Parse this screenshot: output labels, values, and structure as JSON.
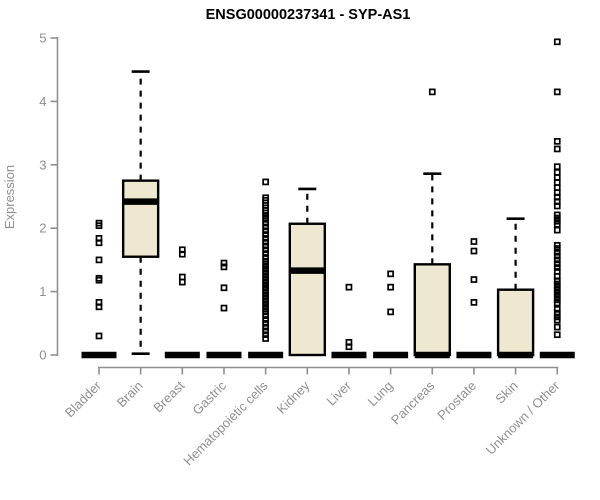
{
  "title": "ENSG00000237341 - SYP-AS1",
  "ylabel": "Expression",
  "colors": {
    "box_fill": "#ede8cf",
    "box_stroke": "#000000",
    "outlier_stroke": "#000000",
    "axis_color": "#8f8f8f",
    "title_color": "#000000",
    "background": "#ffffff"
  },
  "chart_data": {
    "type": "boxplot",
    "title": "ENSG00000237341 - SYP-AS1",
    "xlabel": "",
    "ylabel": "Expression",
    "ylim": [
      0,
      5
    ],
    "yticks": [
      0,
      1,
      2,
      3,
      4,
      5
    ],
    "grid": false,
    "legend": false,
    "categories": [
      "Bladder",
      "Brain",
      "Breast",
      "Gastric",
      "Hematopoietic cells",
      "Kidney",
      "Liver",
      "Lung",
      "Pancreas",
      "Prostate",
      "Skin",
      "Unknown / Other"
    ],
    "series": [
      {
        "name": "Bladder",
        "whisker_low": 0,
        "q1": 0,
        "median": 0,
        "q3": 0,
        "whisker_high": 0,
        "outliers": [
          2.08,
          2.04,
          1.84,
          1.77,
          1.5,
          1.21,
          1.18,
          0.83,
          0.76,
          0.3
        ]
      },
      {
        "name": "Brain",
        "whisker_low": 0.02,
        "q1": 1.55,
        "median": 2.42,
        "q3": 2.75,
        "whisker_high": 4.47,
        "outliers": []
      },
      {
        "name": "Breast",
        "whisker_low": 0,
        "q1": 0,
        "median": 0,
        "q3": 0,
        "whisker_high": 0,
        "outliers": [
          1.66,
          1.59,
          1.23,
          1.15
        ]
      },
      {
        "name": "Gastric",
        "whisker_low": 0,
        "q1": 0,
        "median": 0,
        "q3": 0,
        "whisker_high": 0,
        "outliers": [
          1.45,
          1.39,
          1.06,
          0.74
        ]
      },
      {
        "name": "Hematopoietic cells",
        "whisker_low": 0,
        "q1": 0,
        "median": 0,
        "q3": 0,
        "whisker_high": 0,
        "outliers": [
          2.73,
          2.48,
          2.44,
          2.4,
          2.36,
          2.32,
          2.28,
          2.24,
          2.19,
          2.14,
          2.08,
          2.02,
          1.96,
          1.9,
          1.84,
          1.78,
          1.72,
          1.66,
          1.6,
          1.54,
          1.48,
          1.43,
          1.38,
          1.33,
          1.28,
          1.23,
          1.18,
          1.13,
          1.08,
          1.03,
          0.98,
          0.93,
          0.88,
          0.83,
          0.78,
          0.73,
          0.68,
          0.62,
          0.56,
          0.5,
          0.44,
          0.38,
          0.32,
          0.26
        ]
      },
      {
        "name": "Kidney",
        "whisker_low": 0,
        "q1": 0,
        "median": 1.33,
        "q3": 2.07,
        "whisker_high": 2.62,
        "outliers": []
      },
      {
        "name": "Liver",
        "whisker_low": 0,
        "q1": 0,
        "median": 0,
        "q3": 0,
        "whisker_high": 0,
        "outliers": [
          1.07,
          0.2,
          0.13
        ]
      },
      {
        "name": "Lung",
        "whisker_low": 0,
        "q1": 0,
        "median": 0,
        "q3": 0,
        "whisker_high": 0,
        "outliers": [
          1.28,
          1.07,
          0.68
        ]
      },
      {
        "name": "Pancreas",
        "whisker_low": 0,
        "q1": 0,
        "median": 0,
        "q3": 1.43,
        "whisker_high": 2.86,
        "outliers": [
          4.15
        ]
      },
      {
        "name": "Prostate",
        "whisker_low": 0,
        "q1": 0,
        "median": 0,
        "q3": 0,
        "whisker_high": 0,
        "outliers": [
          1.79,
          1.64,
          1.19,
          0.83
        ]
      },
      {
        "name": "Skin",
        "whisker_low": 0,
        "q1": 0,
        "median": 0,
        "q3": 1.03,
        "whisker_high": 2.15,
        "outliers": []
      },
      {
        "name": "Unknown / Other",
        "whisker_low": 0,
        "q1": 0,
        "median": 0,
        "q3": 0,
        "whisker_high": 0,
        "outliers": [
          4.94,
          4.15,
          3.37,
          3.25,
          2.97,
          2.88,
          2.8,
          2.72,
          2.64,
          2.56,
          2.49,
          2.42,
          2.35,
          2.21,
          2.16,
          2.11,
          2.06,
          1.97,
          1.73,
          1.68,
          1.62,
          1.56,
          1.5,
          1.44,
          1.38,
          1.32,
          1.24,
          1.17,
          1.12,
          1.07,
          1.02,
          0.97,
          0.92,
          0.87,
          0.82,
          0.72,
          0.66,
          0.6,
          0.55,
          0.44,
          0.32
        ]
      }
    ]
  }
}
